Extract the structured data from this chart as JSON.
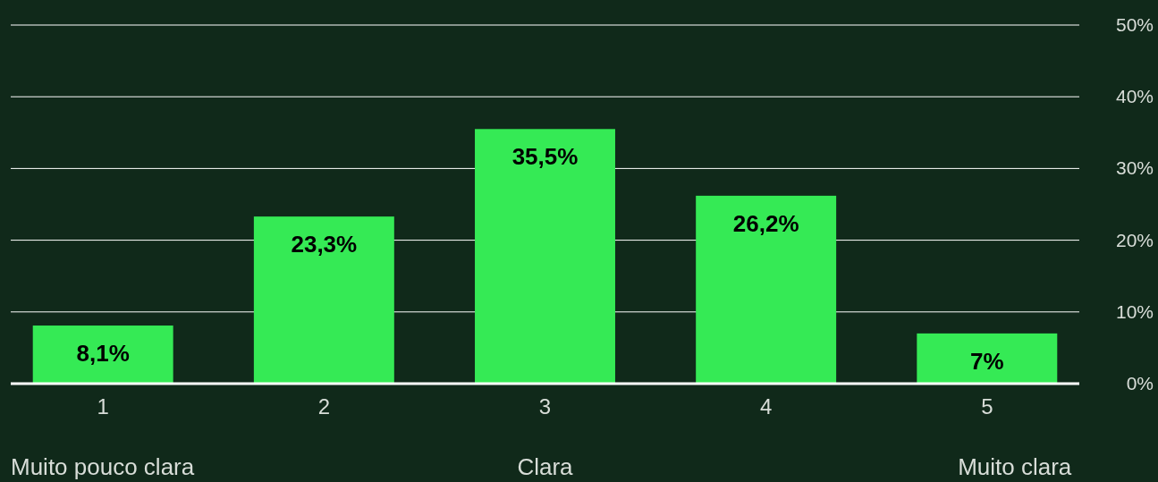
{
  "chart_data": {
    "type": "bar",
    "categories": [
      "1",
      "2",
      "3",
      "4",
      "5"
    ],
    "values": [
      8.1,
      23.3,
      35.5,
      26.2,
      7
    ],
    "value_labels": [
      "8,1%",
      "23,3%",
      "35,5%",
      "26,2%",
      "7%"
    ],
    "color": "#35ea55",
    "ylim": [
      0,
      50
    ],
    "yticks": [
      {
        "value": 0,
        "label": "0%"
      },
      {
        "value": 10,
        "label": "10%"
      },
      {
        "value": 20,
        "label": "20%"
      },
      {
        "value": 30,
        "label": "30%"
      },
      {
        "value": 40,
        "label": "40%"
      },
      {
        "value": 50,
        "label": "50%"
      }
    ],
    "grid": "y",
    "annotations": [
      "Muito pouco clara",
      "Clara",
      "Muito clara"
    ]
  }
}
